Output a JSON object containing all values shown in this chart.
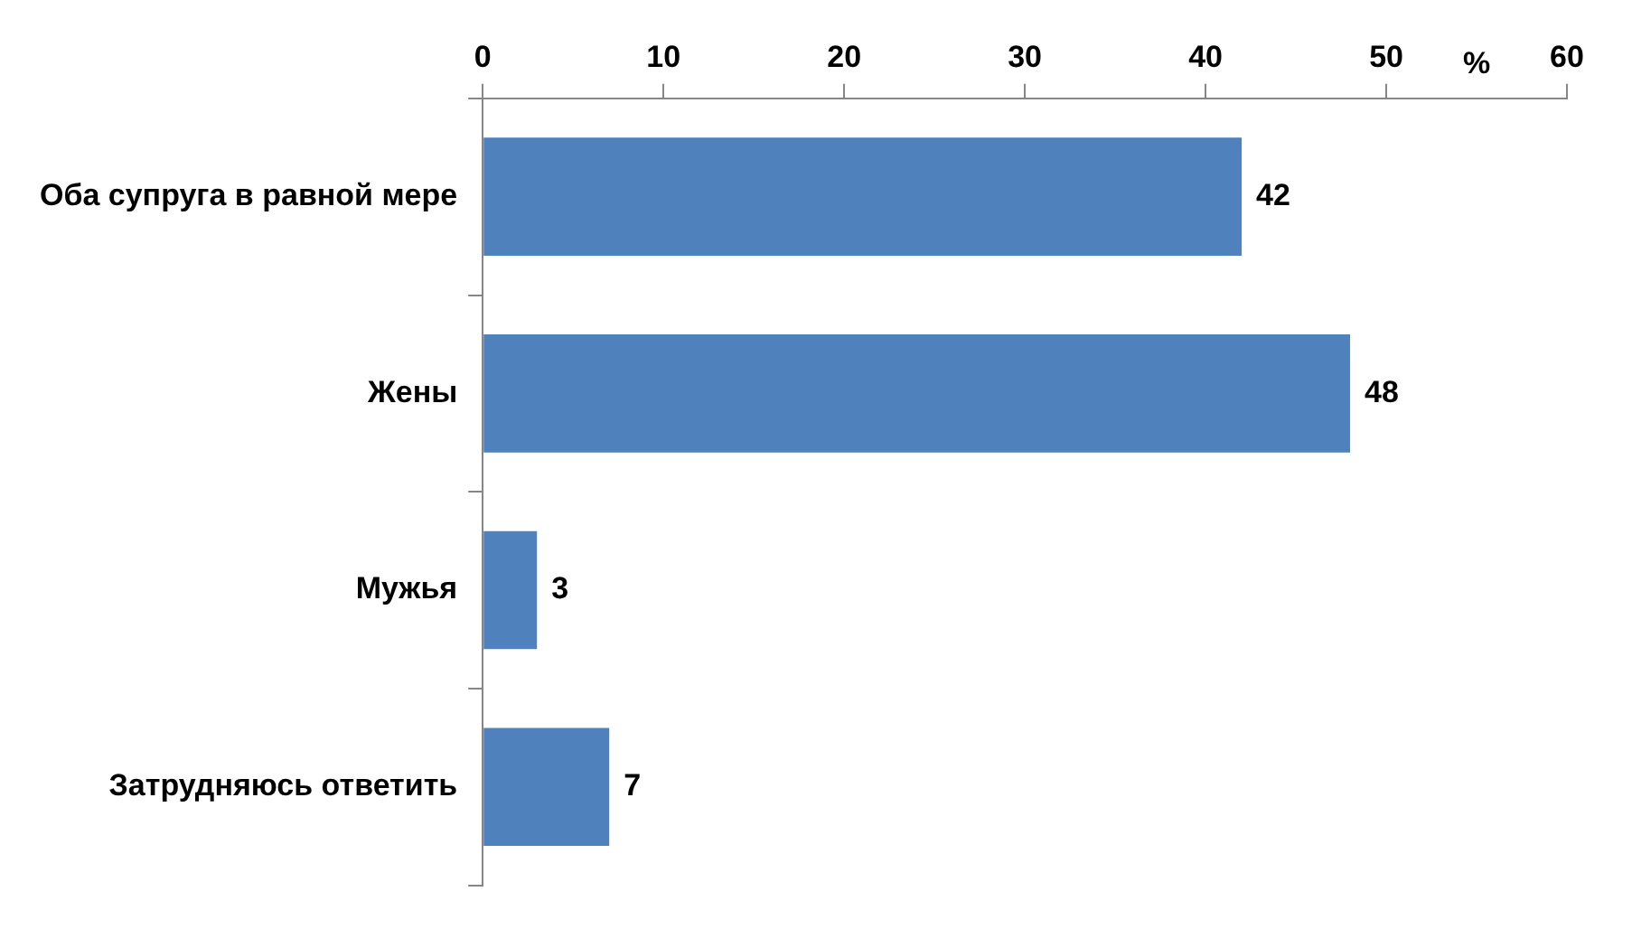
{
  "chart_data": {
    "type": "bar",
    "orientation": "horizontal",
    "xlabel": "%",
    "categories": [
      "Оба супруга в равной мере",
      "Жены",
      "Мужья",
      "Затрудняюсь ответить"
    ],
    "values": [
      42,
      48,
      3,
      7
    ],
    "color": "#4f81bd",
    "xlim": [
      0,
      60
    ],
    "xticks": [
      0,
      10,
      20,
      30,
      40,
      50,
      60
    ],
    "grid": false,
    "legend": false,
    "data_labels": true
  }
}
